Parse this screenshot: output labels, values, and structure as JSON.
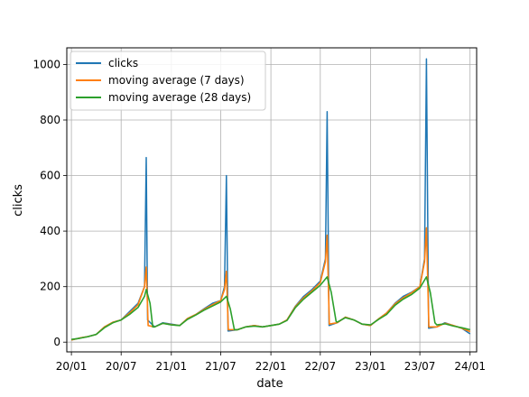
{
  "chart_data": {
    "type": "line",
    "title": "",
    "xlabel": "date",
    "ylabel": "clicks",
    "x_axis": {
      "min": "2019-12-15",
      "max": "2024-01-25",
      "ticks": [
        {
          "date": "2020-01-01",
          "label": "20/01"
        },
        {
          "date": "2020-07-01",
          "label": "20/07"
        },
        {
          "date": "2021-01-01",
          "label": "21/01"
        },
        {
          "date": "2021-07-01",
          "label": "21/07"
        },
        {
          "date": "2022-01-01",
          "label": "22/01"
        },
        {
          "date": "2022-07-01",
          "label": "22/07"
        },
        {
          "date": "2023-01-01",
          "label": "23/01"
        },
        {
          "date": "2023-07-01",
          "label": "23/07"
        },
        {
          "date": "2024-01-01",
          "label": "24/01"
        }
      ]
    },
    "y_axis": {
      "min": -35,
      "max": 1060,
      "ticks": [
        0,
        200,
        400,
        600,
        800,
        1000
      ]
    },
    "grid": true,
    "legend_position": "upper-left",
    "series": [
      {
        "name": "clicks",
        "color": "#1f77b4",
        "points": [
          [
            "2020-01-01",
            8
          ],
          [
            "2020-02-01",
            15
          ],
          [
            "2020-03-01",
            20
          ],
          [
            "2020-04-01",
            28
          ],
          [
            "2020-05-01",
            55
          ],
          [
            "2020-06-01",
            72
          ],
          [
            "2020-07-01",
            80
          ],
          [
            "2020-08-01",
            110
          ],
          [
            "2020-09-01",
            140
          ],
          [
            "2020-09-25",
            200
          ],
          [
            "2020-10-01",
            665
          ],
          [
            "2020-10-06",
            80
          ],
          [
            "2020-11-01",
            55
          ],
          [
            "2020-12-01",
            70
          ],
          [
            "2021-01-01",
            65
          ],
          [
            "2021-02-01",
            60
          ],
          [
            "2021-03-01",
            85
          ],
          [
            "2021-04-01",
            100
          ],
          [
            "2021-05-01",
            120
          ],
          [
            "2021-06-01",
            140
          ],
          [
            "2021-07-01",
            150
          ],
          [
            "2021-07-15",
            200
          ],
          [
            "2021-07-22",
            600
          ],
          [
            "2021-07-28",
            40
          ],
          [
            "2021-09-01",
            45
          ],
          [
            "2021-10-01",
            55
          ],
          [
            "2021-11-01",
            60
          ],
          [
            "2021-12-01",
            55
          ],
          [
            "2022-01-01",
            60
          ],
          [
            "2022-02-01",
            65
          ],
          [
            "2022-03-01",
            80
          ],
          [
            "2022-04-01",
            130
          ],
          [
            "2022-05-01",
            165
          ],
          [
            "2022-06-01",
            190
          ],
          [
            "2022-07-01",
            220
          ],
          [
            "2022-07-20",
            300
          ],
          [
            "2022-07-26",
            830
          ],
          [
            "2022-08-02",
            60
          ],
          [
            "2022-09-01",
            70
          ],
          [
            "2022-10-01",
            90
          ],
          [
            "2022-11-01",
            80
          ],
          [
            "2022-12-01",
            65
          ],
          [
            "2023-01-01",
            60
          ],
          [
            "2023-02-01",
            85
          ],
          [
            "2023-03-01",
            105
          ],
          [
            "2023-04-01",
            140
          ],
          [
            "2023-05-01",
            165
          ],
          [
            "2023-06-01",
            180
          ],
          [
            "2023-07-01",
            200
          ],
          [
            "2023-07-18",
            300
          ],
          [
            "2023-07-25",
            1020
          ],
          [
            "2023-08-02",
            50
          ],
          [
            "2023-09-01",
            55
          ],
          [
            "2023-10-01",
            70
          ],
          [
            "2023-11-01",
            60
          ],
          [
            "2023-12-01",
            50
          ],
          [
            "2024-01-01",
            30
          ]
        ]
      },
      {
        "name": "moving average (7 days)",
        "color": "#ff7f0e",
        "points": [
          [
            "2020-01-01",
            8
          ],
          [
            "2020-02-01",
            15
          ],
          [
            "2020-03-01",
            20
          ],
          [
            "2020-04-01",
            28
          ],
          [
            "2020-05-01",
            55
          ],
          [
            "2020-06-01",
            72
          ],
          [
            "2020-07-01",
            80
          ],
          [
            "2020-08-01",
            105
          ],
          [
            "2020-09-01",
            135
          ],
          [
            "2020-09-25",
            200
          ],
          [
            "2020-10-01",
            270
          ],
          [
            "2020-10-08",
            60
          ],
          [
            "2020-11-01",
            55
          ],
          [
            "2020-12-01",
            68
          ],
          [
            "2021-01-01",
            63
          ],
          [
            "2021-02-01",
            60
          ],
          [
            "2021-03-01",
            85
          ],
          [
            "2021-04-01",
            100
          ],
          [
            "2021-05-01",
            118
          ],
          [
            "2021-06-01",
            135
          ],
          [
            "2021-07-01",
            150
          ],
          [
            "2021-07-15",
            190
          ],
          [
            "2021-07-22",
            255
          ],
          [
            "2021-07-29",
            45
          ],
          [
            "2021-09-01",
            45
          ],
          [
            "2021-10-01",
            55
          ],
          [
            "2021-11-01",
            60
          ],
          [
            "2021-12-01",
            55
          ],
          [
            "2022-01-01",
            60
          ],
          [
            "2022-02-01",
            65
          ],
          [
            "2022-03-01",
            80
          ],
          [
            "2022-04-01",
            128
          ],
          [
            "2022-05-01",
            160
          ],
          [
            "2022-06-01",
            185
          ],
          [
            "2022-07-01",
            215
          ],
          [
            "2022-07-20",
            290
          ],
          [
            "2022-07-26",
            385
          ],
          [
            "2022-08-03",
            65
          ],
          [
            "2022-09-01",
            70
          ],
          [
            "2022-10-01",
            90
          ],
          [
            "2022-11-01",
            80
          ],
          [
            "2022-12-01",
            65
          ],
          [
            "2023-01-01",
            60
          ],
          [
            "2023-02-01",
            85
          ],
          [
            "2023-03-01",
            105
          ],
          [
            "2023-04-01",
            138
          ],
          [
            "2023-05-01",
            160
          ],
          [
            "2023-06-01",
            178
          ],
          [
            "2023-07-01",
            200
          ],
          [
            "2023-07-18",
            290
          ],
          [
            "2023-07-25",
            412
          ],
          [
            "2023-08-03",
            55
          ],
          [
            "2023-09-01",
            55
          ],
          [
            "2023-10-01",
            68
          ],
          [
            "2023-11-01",
            60
          ],
          [
            "2023-12-01",
            50
          ],
          [
            "2024-01-01",
            38
          ]
        ]
      },
      {
        "name": "moving average (28 days)",
        "color": "#2ca02c",
        "points": [
          [
            "2020-01-01",
            10
          ],
          [
            "2020-02-01",
            14
          ],
          [
            "2020-03-01",
            20
          ],
          [
            "2020-04-01",
            28
          ],
          [
            "2020-05-01",
            52
          ],
          [
            "2020-06-01",
            70
          ],
          [
            "2020-07-01",
            80
          ],
          [
            "2020-08-01",
            100
          ],
          [
            "2020-09-01",
            125
          ],
          [
            "2020-09-25",
            165
          ],
          [
            "2020-10-01",
            190
          ],
          [
            "2020-10-15",
            140
          ],
          [
            "2020-10-25",
            55
          ],
          [
            "2020-11-01",
            55
          ],
          [
            "2020-12-01",
            68
          ],
          [
            "2021-01-01",
            62
          ],
          [
            "2021-02-01",
            60
          ],
          [
            "2021-03-01",
            82
          ],
          [
            "2021-04-01",
            98
          ],
          [
            "2021-05-01",
            115
          ],
          [
            "2021-06-01",
            130
          ],
          [
            "2021-07-01",
            145
          ],
          [
            "2021-07-22",
            165
          ],
          [
            "2021-08-05",
            120
          ],
          [
            "2021-08-20",
            45
          ],
          [
            "2021-09-01",
            45
          ],
          [
            "2021-10-01",
            55
          ],
          [
            "2021-11-01",
            58
          ],
          [
            "2021-12-01",
            55
          ],
          [
            "2022-01-01",
            60
          ],
          [
            "2022-02-01",
            65
          ],
          [
            "2022-03-01",
            78
          ],
          [
            "2022-04-01",
            125
          ],
          [
            "2022-05-01",
            155
          ],
          [
            "2022-06-01",
            180
          ],
          [
            "2022-07-01",
            205
          ],
          [
            "2022-07-26",
            235
          ],
          [
            "2022-08-10",
            180
          ],
          [
            "2022-08-28",
            75
          ],
          [
            "2022-09-01",
            72
          ],
          [
            "2022-10-01",
            88
          ],
          [
            "2022-11-01",
            80
          ],
          [
            "2022-12-01",
            65
          ],
          [
            "2023-01-01",
            62
          ],
          [
            "2023-02-01",
            83
          ],
          [
            "2023-03-01",
            100
          ],
          [
            "2023-04-01",
            133
          ],
          [
            "2023-05-01",
            155
          ],
          [
            "2023-06-01",
            172
          ],
          [
            "2023-07-01",
            195
          ],
          [
            "2023-07-25",
            235
          ],
          [
            "2023-08-08",
            180
          ],
          [
            "2023-08-25",
            70
          ],
          [
            "2023-09-01",
            62
          ],
          [
            "2023-10-01",
            66
          ],
          [
            "2023-11-01",
            58
          ],
          [
            "2023-12-01",
            52
          ],
          [
            "2024-01-01",
            45
          ]
        ]
      }
    ]
  }
}
